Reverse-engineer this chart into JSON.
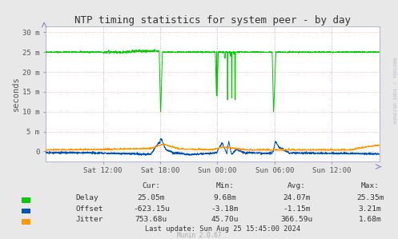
{
  "title": "NTP timing statistics for system peer - by day",
  "ylabel": "seconds",
  "background_color": "#e8e8e8",
  "plot_bg_color": "#ffffff",
  "ytick_labels": [
    "0",
    "5 m",
    "10 m",
    "15 m",
    "20 m",
    "25 m",
    "30 m"
  ],
  "ytick_vals": [
    0,
    5,
    10,
    15,
    20,
    25,
    30
  ],
  "xtick_labels": [
    "Sat 12:00",
    "Sat 18:00",
    "Sun 00:00",
    "Sun 06:00",
    "Sun 12:00"
  ],
  "xtick_vals": [
    6,
    12,
    18,
    24,
    30
  ],
  "xlim": [
    0,
    35
  ],
  "ylim": [
    -2.5,
    31.5
  ],
  "delay_color": "#00cc00",
  "offset_color": "#0055bb",
  "jitter_color": "#ff9900",
  "grid_h_color": "#ffaaaa",
  "grid_v_color": "#aaaacc",
  "watermark": "RRDTOOL / TOBI OETIKER",
  "munin_version": "Munin 2.0.67",
  "legend_items": [
    "Delay",
    "Offset",
    "Jitter"
  ],
  "stats_header": [
    "Cur:",
    "Min:",
    "Avg:",
    "Max:"
  ],
  "stats_delay": [
    "25.05m",
    "9.68m",
    "24.07m",
    "25.35m"
  ],
  "stats_offset": [
    "-623.15u",
    "-3.18m",
    "-1.15m",
    "3.21m"
  ],
  "stats_jitter": [
    "753.68u",
    "45.70u",
    "366.59u",
    "1.68m"
  ],
  "last_update": "Last update: Sun Aug 25 15:45:00 2024"
}
